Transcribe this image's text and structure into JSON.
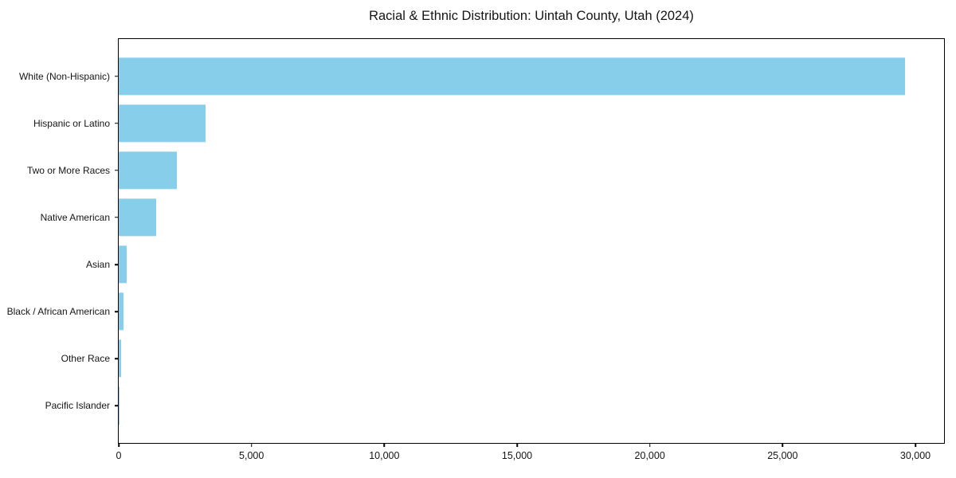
{
  "chart_data": {
    "type": "bar",
    "orientation": "horizontal",
    "title": "Racial & Ethnic Distribution: Uintah County, Utah (2024)",
    "categories": [
      "White (Non-Hispanic)",
      "Hispanic or Latino",
      "Two or More Races",
      "Native American",
      "Asian",
      "Black / African American",
      "Other Race",
      "Pacific Islander"
    ],
    "values": [
      29600,
      3260,
      2200,
      1400,
      300,
      170,
      100,
      20
    ],
    "xlabel": "",
    "ylabel": "",
    "xlim": [
      0,
      31080
    ],
    "xticks": [
      0,
      5000,
      10000,
      15000,
      20000,
      25000,
      30000
    ],
    "xtick_labels": [
      "0",
      "5,000",
      "10,000",
      "15,000",
      "20,000",
      "25,000",
      "30,000"
    ],
    "bar_color": "#87CEEB",
    "grid": false,
    "legend": null,
    "bar_height_frac": 0.8,
    "y_span_units": 8.58,
    "first_center_offset_units": 0.79
  }
}
